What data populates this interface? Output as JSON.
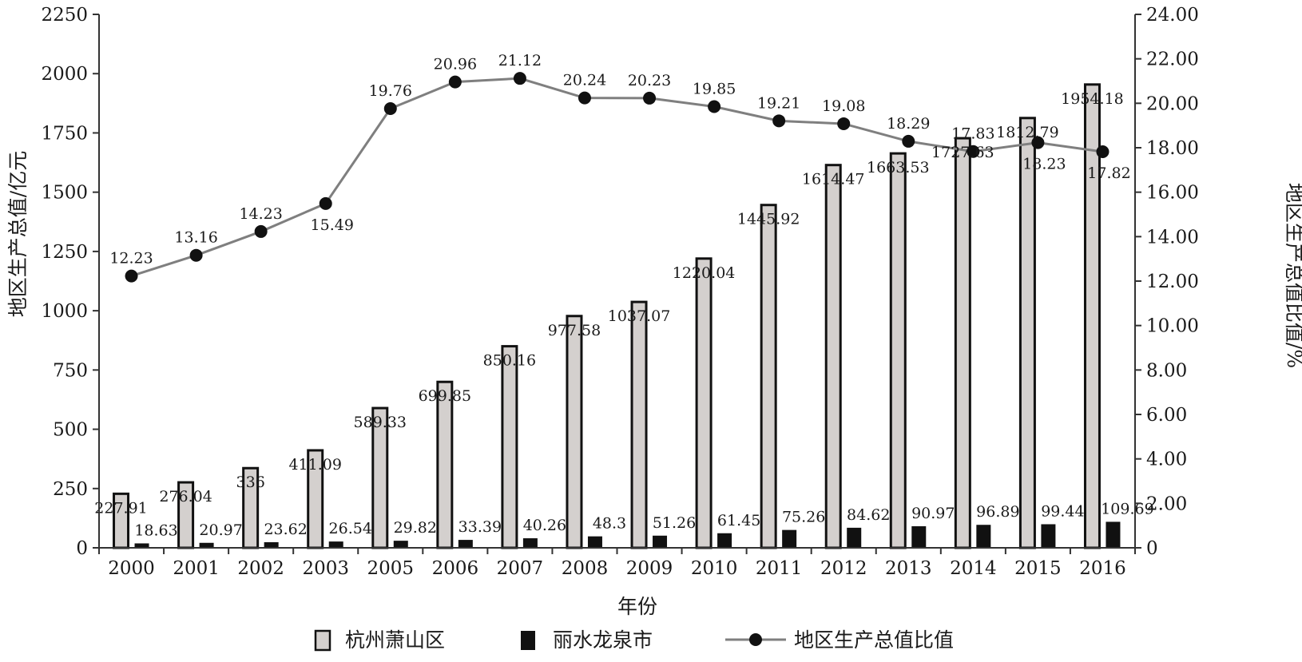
{
  "chart_data": {
    "type": "bar",
    "categories": [
      "2000",
      "2001",
      "2002",
      "2003",
      "2005",
      "2006",
      "2007",
      "2008",
      "2009",
      "2010",
      "2011",
      "2012",
      "2013",
      "2014",
      "2015",
      "2016"
    ],
    "series": [
      {
        "name": "杭州萧山区",
        "kind": "bar",
        "axis": "left",
        "color": "#d4d0ce",
        "values": [
          227.91,
          276.04,
          336,
          411.09,
          589.33,
          699.85,
          850.16,
          977.58,
          1037.07,
          1220.04,
          1445.92,
          1614.47,
          1663.53,
          1727.63,
          1812.79,
          1954.18
        ],
        "labels": [
          "227.91",
          "276.04",
          "336",
          "411.09",
          "589.33",
          "699.85",
          "850.16",
          "977.58",
          "1037.07",
          "1220.04",
          "1445.92",
          "1614.47",
          "1663.53",
          "1727.63",
          "1812.79",
          "1954.18"
        ]
      },
      {
        "name": "丽水龙泉市",
        "kind": "bar",
        "axis": "left",
        "color": "#111111",
        "values": [
          18.63,
          20.97,
          23.62,
          26.54,
          29.82,
          33.39,
          40.26,
          48.3,
          51.26,
          61.45,
          75.26,
          84.62,
          90.97,
          96.89,
          99.44,
          109.69
        ],
        "labels": [
          "18.63",
          "20.97",
          "23.62",
          "26.54",
          "29.82",
          "33.39",
          "40.26",
          "48.3",
          "51.26",
          "61.45",
          "75.26",
          "84.62",
          "90.97",
          "96.89",
          "99.44",
          "109.69"
        ]
      },
      {
        "name": "地区生产总值比值",
        "kind": "line",
        "axis": "right",
        "color": "#7f7f7f",
        "values": [
          12.23,
          13.16,
          14.23,
          15.49,
          19.76,
          20.96,
          21.12,
          20.24,
          20.23,
          19.85,
          19.21,
          19.08,
          18.29,
          17.83,
          18.23,
          17.82
        ],
        "labels": [
          "12.23",
          "13.16",
          "14.23",
          "15.49",
          "19.76",
          "20.96",
          "21.12",
          "20.24",
          "20.23",
          "19.85",
          "19.21",
          "19.08",
          "18.29",
          "17.83",
          "18.23",
          "17.82"
        ]
      }
    ],
    "xlabel": "年份",
    "ylabel": "地区生产总值/亿元",
    "y2label": "地区生产总值比值/%",
    "ylim": [
      0,
      2250
    ],
    "y2lim": [
      0,
      24
    ],
    "yticks": [
      "0",
      "250",
      "500",
      "750",
      "1000",
      "1250",
      "1500",
      "1750",
      "2000",
      "2250"
    ],
    "y2ticks": [
      "0",
      "2.00",
      "4.00",
      "6.00",
      "8.00",
      "10.00",
      "12.00",
      "14.00",
      "16.00",
      "18.00",
      "20.00",
      "22.00",
      "24.00"
    ],
    "grid": false,
    "legend": "bottom-center"
  }
}
